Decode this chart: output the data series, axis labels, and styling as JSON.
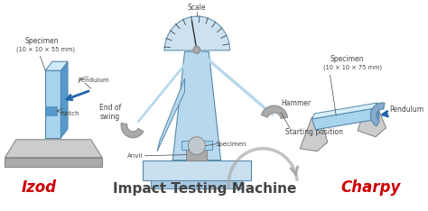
{
  "bg_color": "#ffffff",
  "title": "Impact Testing Machine",
  "title_fontsize": 11,
  "izod_label": "Izod",
  "charpy_label": "Charpy",
  "label_color_red": "#cc0000",
  "label_color_dark": "#444444",
  "machine_color_light": "#b8d8ee",
  "machine_color_mid": "#88b8d8",
  "machine_edge": "#5588aa",
  "specimen_color_light": "#a8d4ee",
  "specimen_color_mid": "#5599cc",
  "specimen_color_dark": "#2266aa",
  "gray_light": "#cccccc",
  "gray_mid": "#aaaaaa",
  "gray_dark": "#888888"
}
